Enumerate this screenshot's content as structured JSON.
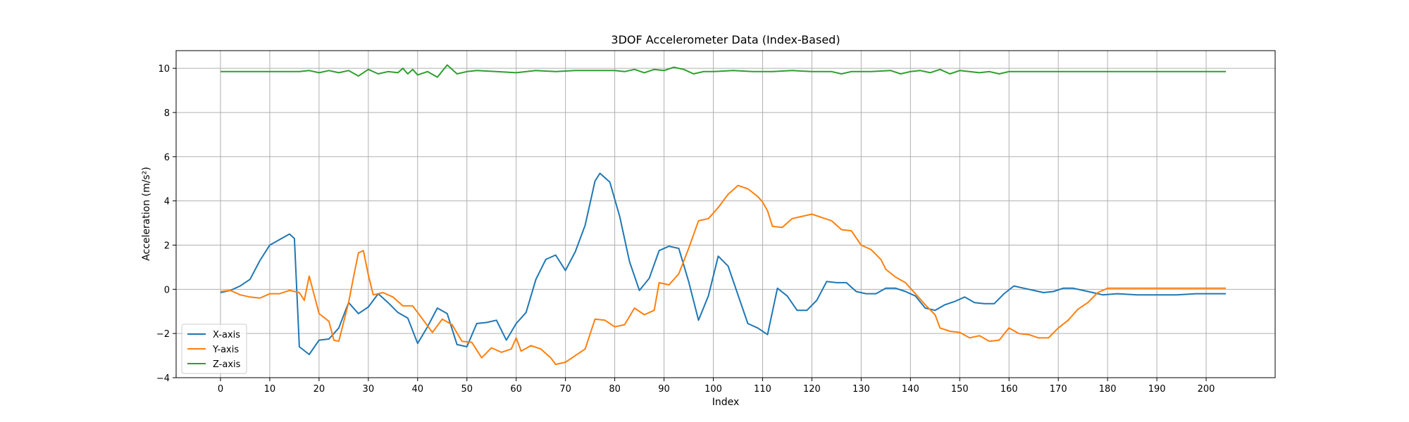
{
  "chart_data": {
    "type": "line",
    "title": "3DOF Accelerometer Data (Index-Based)",
    "xlabel": "Index",
    "ylabel": "Acceleration (m/s²)",
    "xlim": [
      -9,
      214
    ],
    "ylim": [
      -4,
      10.8
    ],
    "xticks": [
      0,
      10,
      20,
      30,
      40,
      50,
      60,
      70,
      80,
      90,
      100,
      110,
      120,
      130,
      140,
      150,
      160,
      170,
      180,
      190,
      200
    ],
    "yticks": [
      -4,
      -2,
      0,
      2,
      4,
      6,
      8,
      10
    ],
    "grid": true,
    "legend_position": "lower-left",
    "key_points": {
      "x_axis": [
        [
          0,
          -0.15
        ],
        [
          2,
          -0.05
        ],
        [
          4,
          0.15
        ],
        [
          6,
          0.45
        ],
        [
          8,
          1.3
        ],
        [
          10,
          2.0
        ],
        [
          12,
          2.25
        ],
        [
          14,
          2.5
        ],
        [
          15,
          2.3
        ],
        [
          16,
          -2.6
        ],
        [
          18,
          -2.95
        ],
        [
          20,
          -2.3
        ],
        [
          22,
          -2.25
        ],
        [
          24,
          -1.75
        ],
        [
          26,
          -0.6
        ],
        [
          28,
          -1.1
        ],
        [
          30,
          -0.8
        ],
        [
          32,
          -0.2
        ],
        [
          34,
          -0.6
        ],
        [
          36,
          -1.05
        ],
        [
          38,
          -1.3
        ],
        [
          40,
          -2.45
        ],
        [
          42,
          -1.7
        ],
        [
          44,
          -0.85
        ],
        [
          46,
          -1.1
        ],
        [
          48,
          -2.5
        ],
        [
          50,
          -2.6
        ],
        [
          52,
          -1.55
        ],
        [
          54,
          -1.5
        ],
        [
          56,
          -1.4
        ],
        [
          58,
          -2.3
        ],
        [
          60,
          -1.55
        ],
        [
          62,
          -1.05
        ],
        [
          64,
          0.45
        ],
        [
          66,
          1.35
        ],
        [
          68,
          1.55
        ],
        [
          70,
          0.85
        ],
        [
          72,
          1.7
        ],
        [
          74,
          2.9
        ],
        [
          76,
          4.9
        ],
        [
          77,
          5.25
        ],
        [
          79,
          4.85
        ],
        [
          81,
          3.3
        ],
        [
          83,
          1.25
        ],
        [
          85,
          -0.05
        ],
        [
          87,
          0.5
        ],
        [
          89,
          1.75
        ],
        [
          91,
          1.95
        ],
        [
          93,
          1.85
        ],
        [
          95,
          0.35
        ],
        [
          97,
          -1.4
        ],
        [
          99,
          -0.3
        ],
        [
          101,
          1.5
        ],
        [
          103,
          1.05
        ],
        [
          105,
          -0.25
        ],
        [
          107,
          -1.55
        ],
        [
          109,
          -1.75
        ],
        [
          111,
          -2.05
        ],
        [
          113,
          0.05
        ],
        [
          115,
          -0.3
        ],
        [
          117,
          -0.95
        ],
        [
          119,
          -0.95
        ],
        [
          121,
          -0.5
        ],
        [
          123,
          0.35
        ],
        [
          125,
          0.3
        ],
        [
          127,
          0.3
        ],
        [
          129,
          -0.1
        ],
        [
          131,
          -0.2
        ],
        [
          133,
          -0.2
        ],
        [
          135,
          0.05
        ],
        [
          137,
          0.05
        ],
        [
          139,
          -0.1
        ],
        [
          141,
          -0.3
        ],
        [
          143,
          -0.85
        ],
        [
          145,
          -0.95
        ],
        [
          147,
          -0.7
        ],
        [
          149,
          -0.55
        ],
        [
          151,
          -0.35
        ],
        [
          153,
          -0.6
        ],
        [
          155,
          -0.65
        ],
        [
          157,
          -0.65
        ],
        [
          159,
          -0.2
        ],
        [
          161,
          0.15
        ],
        [
          163,
          0.05
        ],
        [
          165,
          -0.05
        ],
        [
          167,
          -0.15
        ],
        [
          169,
          -0.1
        ],
        [
          171,
          0.05
        ],
        [
          173,
          0.05
        ],
        [
          175,
          -0.05
        ],
        [
          177,
          -0.15
        ],
        [
          179,
          -0.25
        ],
        [
          182,
          -0.2
        ],
        [
          186,
          -0.25
        ],
        [
          190,
          -0.25
        ],
        [
          194,
          -0.25
        ],
        [
          198,
          -0.2
        ],
        [
          201,
          -0.2
        ],
        [
          204,
          -0.2
        ]
      ],
      "y_axis": [
        [
          0,
          -0.1
        ],
        [
          2,
          -0.05
        ],
        [
          4,
          -0.25
        ],
        [
          6,
          -0.35
        ],
        [
          8,
          -0.4
        ],
        [
          10,
          -0.2
        ],
        [
          12,
          -0.2
        ],
        [
          14,
          -0.05
        ],
        [
          16,
          -0.15
        ],
        [
          17,
          -0.5
        ],
        [
          18,
          0.6
        ],
        [
          20,
          -1.1
        ],
        [
          22,
          -1.45
        ],
        [
          23,
          -2.3
        ],
        [
          24,
          -2.35
        ],
        [
          26,
          -0.6
        ],
        [
          27,
          0.55
        ],
        [
          28,
          1.65
        ],
        [
          29,
          1.75
        ],
        [
          30,
          0.65
        ],
        [
          31,
          -0.25
        ],
        [
          33,
          -0.15
        ],
        [
          35,
          -0.35
        ],
        [
          37,
          -0.75
        ],
        [
          39,
          -0.75
        ],
        [
          41,
          -1.35
        ],
        [
          43,
          -1.95
        ],
        [
          45,
          -1.35
        ],
        [
          47,
          -1.6
        ],
        [
          49,
          -2.35
        ],
        [
          51,
          -2.4
        ],
        [
          52,
          -2.75
        ],
        [
          53,
          -3.1
        ],
        [
          55,
          -2.65
        ],
        [
          57,
          -2.85
        ],
        [
          59,
          -2.7
        ],
        [
          60,
          -2.2
        ],
        [
          61,
          -2.8
        ],
        [
          63,
          -2.55
        ],
        [
          65,
          -2.7
        ],
        [
          67,
          -3.1
        ],
        [
          68,
          -3.4
        ],
        [
          70,
          -3.3
        ],
        [
          72,
          -3.0
        ],
        [
          74,
          -2.7
        ],
        [
          76,
          -1.35
        ],
        [
          78,
          -1.4
        ],
        [
          80,
          -1.7
        ],
        [
          82,
          -1.6
        ],
        [
          84,
          -0.85
        ],
        [
          86,
          -1.15
        ],
        [
          88,
          -0.95
        ],
        [
          89,
          0.3
        ],
        [
          91,
          0.2
        ],
        [
          93,
          0.7
        ],
        [
          95,
          1.85
        ],
        [
          97,
          3.1
        ],
        [
          99,
          3.2
        ],
        [
          101,
          3.7
        ],
        [
          103,
          4.3
        ],
        [
          105,
          4.7
        ],
        [
          107,
          4.55
        ],
        [
          109,
          4.2
        ],
        [
          110,
          3.95
        ],
        [
          111,
          3.55
        ],
        [
          112,
          2.85
        ],
        [
          114,
          2.8
        ],
        [
          116,
          3.2
        ],
        [
          118,
          3.3
        ],
        [
          120,
          3.4
        ],
        [
          122,
          3.25
        ],
        [
          124,
          3.1
        ],
        [
          126,
          2.7
        ],
        [
          128,
          2.65
        ],
        [
          130,
          2.0
        ],
        [
          132,
          1.8
        ],
        [
          134,
          1.35
        ],
        [
          135,
          0.9
        ],
        [
          137,
          0.55
        ],
        [
          139,
          0.3
        ],
        [
          141,
          -0.2
        ],
        [
          143,
          -0.7
        ],
        [
          145,
          -1.15
        ],
        [
          146,
          -1.75
        ],
        [
          148,
          -1.9
        ],
        [
          150,
          -1.95
        ],
        [
          152,
          -2.2
        ],
        [
          154,
          -2.1
        ],
        [
          156,
          -2.35
        ],
        [
          158,
          -2.3
        ],
        [
          160,
          -1.75
        ],
        [
          162,
          -2.0
        ],
        [
          164,
          -2.05
        ],
        [
          166,
          -2.2
        ],
        [
          168,
          -2.2
        ],
        [
          170,
          -1.75
        ],
        [
          172,
          -1.4
        ],
        [
          174,
          -0.9
        ],
        [
          176,
          -0.6
        ],
        [
          178,
          -0.15
        ],
        [
          180,
          0.05
        ],
        [
          184,
          0.05
        ],
        [
          188,
          0.05
        ],
        [
          192,
          0.05
        ],
        [
          196,
          0.05
        ],
        [
          200,
          0.05
        ],
        [
          204,
          0.05
        ]
      ],
      "z_axis": [
        [
          0,
          9.85
        ],
        [
          4,
          9.85
        ],
        [
          8,
          9.85
        ],
        [
          12,
          9.85
        ],
        [
          16,
          9.85
        ],
        [
          18,
          9.9
        ],
        [
          20,
          9.8
        ],
        [
          22,
          9.9
        ],
        [
          24,
          9.8
        ],
        [
          26,
          9.9
        ],
        [
          28,
          9.65
        ],
        [
          30,
          9.95
        ],
        [
          32,
          9.75
        ],
        [
          34,
          9.85
        ],
        [
          36,
          9.8
        ],
        [
          37,
          10.0
        ],
        [
          38,
          9.75
        ],
        [
          39,
          9.95
        ],
        [
          40,
          9.7
        ],
        [
          42,
          9.85
        ],
        [
          44,
          9.6
        ],
        [
          46,
          10.15
        ],
        [
          48,
          9.75
        ],
        [
          50,
          9.85
        ],
        [
          52,
          9.9
        ],
        [
          56,
          9.85
        ],
        [
          60,
          9.8
        ],
        [
          64,
          9.9
        ],
        [
          68,
          9.85
        ],
        [
          72,
          9.9
        ],
        [
          76,
          9.9
        ],
        [
          80,
          9.9
        ],
        [
          82,
          9.85
        ],
        [
          84,
          9.95
        ],
        [
          86,
          9.8
        ],
        [
          88,
          9.95
        ],
        [
          90,
          9.9
        ],
        [
          92,
          10.05
        ],
        [
          94,
          9.95
        ],
        [
          96,
          9.75
        ],
        [
          98,
          9.85
        ],
        [
          100,
          9.85
        ],
        [
          104,
          9.9
        ],
        [
          108,
          9.85
        ],
        [
          112,
          9.85
        ],
        [
          116,
          9.9
        ],
        [
          120,
          9.85
        ],
        [
          124,
          9.85
        ],
        [
          126,
          9.75
        ],
        [
          128,
          9.85
        ],
        [
          132,
          9.85
        ],
        [
          136,
          9.9
        ],
        [
          138,
          9.75
        ],
        [
          140,
          9.85
        ],
        [
          142,
          9.9
        ],
        [
          144,
          9.8
        ],
        [
          146,
          9.95
        ],
        [
          148,
          9.75
        ],
        [
          150,
          9.9
        ],
        [
          154,
          9.8
        ],
        [
          156,
          9.85
        ],
        [
          158,
          9.75
        ],
        [
          160,
          9.85
        ],
        [
          164,
          9.85
        ],
        [
          168,
          9.85
        ],
        [
          172,
          9.85
        ],
        [
          176,
          9.85
        ],
        [
          180,
          9.85
        ],
        [
          184,
          9.85
        ],
        [
          188,
          9.85
        ],
        [
          192,
          9.85
        ],
        [
          196,
          9.85
        ],
        [
          200,
          9.85
        ],
        [
          204,
          9.85
        ]
      ]
    },
    "series": [
      {
        "name": "X-axis",
        "color": "#1f77b4",
        "key": "x_axis"
      },
      {
        "name": "Y-axis",
        "color": "#ff7f0e",
        "key": "y_axis"
      },
      {
        "name": "Z-axis",
        "color": "#2ca02c",
        "key": "z_axis"
      }
    ]
  }
}
